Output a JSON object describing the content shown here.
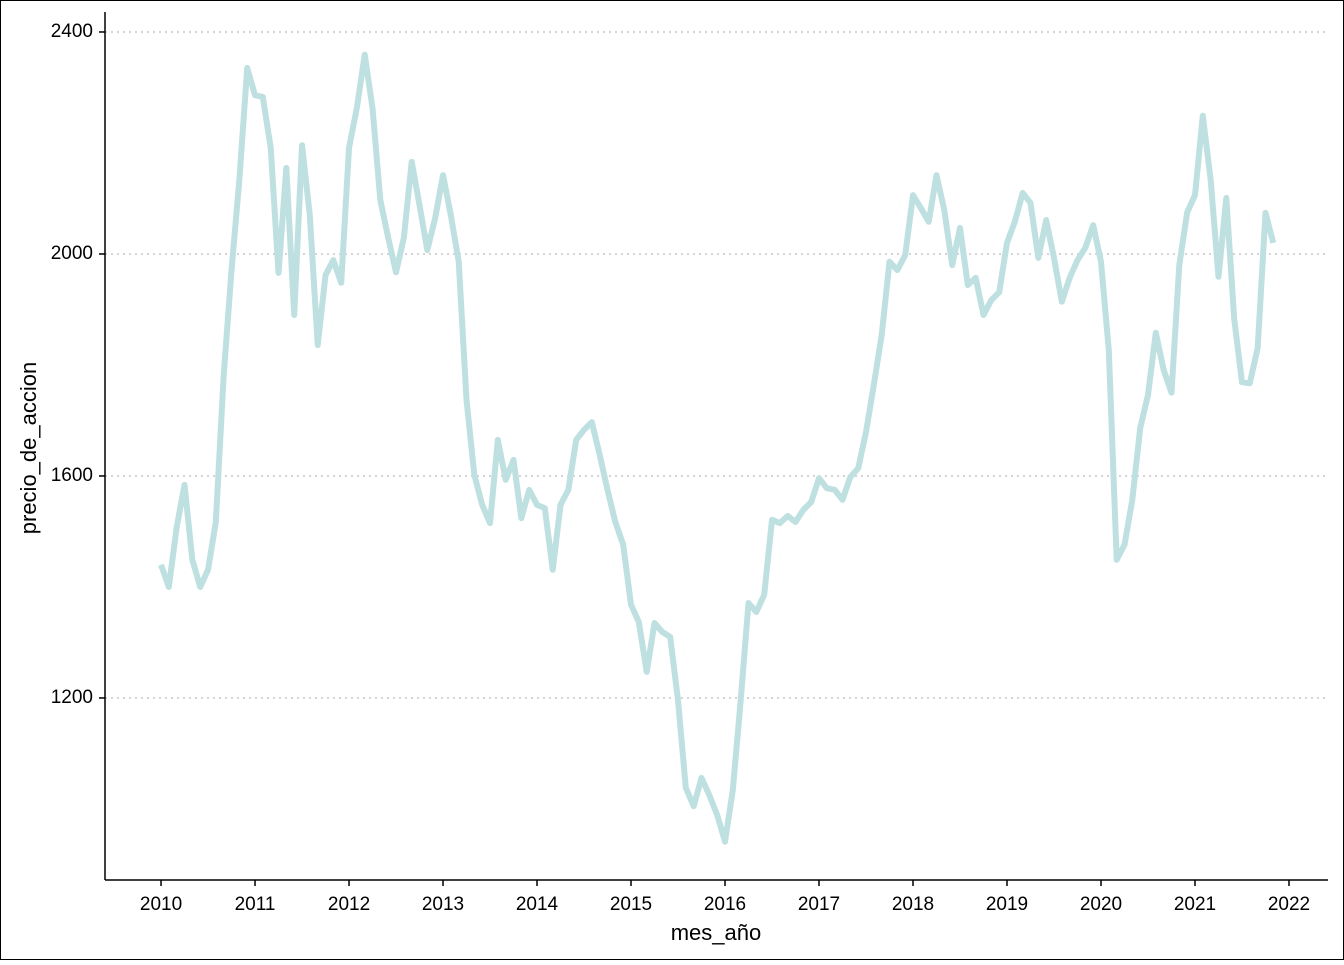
{
  "chart_data": {
    "type": "line",
    "x_label": "mes_año",
    "y_label": "precio_de_accion",
    "x": [
      2010,
      2010.083,
      2010.167,
      2010.25,
      2010.333,
      2010.417,
      2010.5,
      2010.583,
      2010.667,
      2010.75,
      2010.833,
      2010.917,
      2011,
      2011.083,
      2011.167,
      2011.25,
      2011.333,
      2011.417,
      2011.5,
      2011.583,
      2011.667,
      2011.75,
      2011.833,
      2011.917,
      2012,
      2012.083,
      2012.167,
      2012.25,
      2012.333,
      2012.417,
      2012.5,
      2012.583,
      2012.667,
      2012.75,
      2012.833,
      2012.917,
      2013,
      2013.083,
      2013.167,
      2013.25,
      2013.333,
      2013.417,
      2013.5,
      2013.583,
      2013.667,
      2013.75,
      2013.833,
      2013.917,
      2014,
      2014.083,
      2014.167,
      2014.25,
      2014.333,
      2014.417,
      2014.5,
      2014.583,
      2014.667,
      2014.75,
      2014.833,
      2014.917,
      2015,
      2015.083,
      2015.167,
      2015.25,
      2015.333,
      2015.417,
      2015.5,
      2015.583,
      2015.667,
      2015.75,
      2015.833,
      2015.917,
      2016,
      2016.083,
      2016.167,
      2016.25,
      2016.333,
      2016.417,
      2016.5,
      2016.583,
      2016.667,
      2016.75,
      2016.833,
      2016.917,
      2017,
      2017.083,
      2017.167,
      2017.25,
      2017.333,
      2017.417,
      2017.5,
      2017.583,
      2017.667,
      2017.75,
      2017.833,
      2017.917,
      2018,
      2018.083,
      2018.167,
      2018.25,
      2018.333,
      2018.417,
      2018.5,
      2018.583,
      2018.667,
      2018.75,
      2018.833,
      2018.917,
      2019,
      2019.083,
      2019.167,
      2019.25,
      2019.333,
      2019.417,
      2019.5,
      2019.583,
      2019.667,
      2019.75,
      2019.833,
      2019.917,
      2020,
      2020.083,
      2020.167,
      2020.25,
      2020.333,
      2020.417,
      2020.5,
      2020.583,
      2020.667,
      2020.75,
      2020.833,
      2020.917,
      2021,
      2021.083,
      2021.167,
      2021.25,
      2021.333,
      2021.417,
      2021.5,
      2021.583,
      2021.667,
      2021.75,
      2021.833
    ],
    "series": [
      {
        "color": "#bfe0e0",
        "values": [
          1440,
          1400,
          1508,
          1584,
          1449,
          1400,
          1431,
          1517,
          1782,
          1971,
          2133,
          2335,
          2286,
          2283,
          2191,
          1966,
          2155,
          1890,
          2196,
          2070,
          1836,
          1962,
          1989,
          1948,
          2191,
          2263,
          2359,
          2263,
          2097,
          2029,
          1967,
          2029,
          2166,
          2088,
          2007,
          2065,
          2142,
          2070,
          1986,
          1737,
          1602,
          1548,
          1515,
          1665,
          1593,
          1629,
          1524,
          1575,
          1548,
          1542,
          1431,
          1548,
          1575,
          1665,
          1683,
          1697,
          1638,
          1575,
          1517,
          1476,
          1368,
          1337,
          1247,
          1335,
          1319,
          1310,
          1196,
          1038,
          1005,
          1056,
          1025,
          989,
          941,
          1034,
          1196,
          1371,
          1355,
          1386,
          1521,
          1515,
          1528,
          1517,
          1539,
          1553,
          1596,
          1578,
          1575,
          1557,
          1598,
          1614,
          1679,
          1764,
          1854,
          1986,
          1971,
          1998,
          2106,
          2083,
          2058,
          2142,
          2079,
          1980,
          2047,
          1944,
          1957,
          1890,
          1917,
          1931,
          2020,
          2058,
          2110,
          2092,
          1993,
          2061,
          1993,
          1914,
          1957,
          1989,
          2011,
          2052,
          1986,
          1827,
          1449,
          1476,
          1557,
          1686,
          1746,
          1858,
          1791,
          1750,
          1980,
          2075,
          2106,
          2249,
          2133,
          1959,
          2101,
          1883,
          1769,
          1767,
          1831,
          2074,
          2020
        ]
      }
    ],
    "xlim": [
      2009.404,
      2022.415
    ],
    "ylim": [
      872,
      2436
    ],
    "xticks": [
      2010,
      2011,
      2012,
      2013,
      2014,
      2015,
      2016,
      2017,
      2018,
      2019,
      2020,
      2021,
      2022
    ],
    "yticks": [
      1200,
      1600,
      2000,
      2400
    ],
    "grid": true
  }
}
